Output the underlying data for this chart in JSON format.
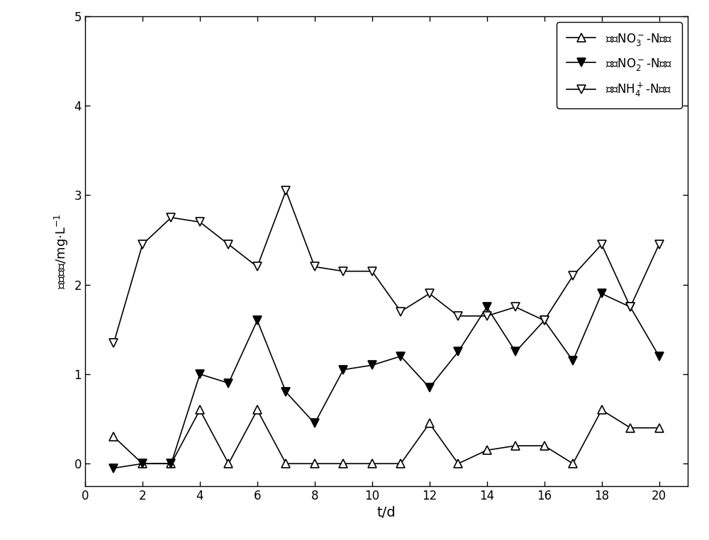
{
  "no3_x": [
    1,
    2,
    3,
    4,
    5,
    6,
    7,
    8,
    9,
    10,
    11,
    12,
    13,
    14,
    15,
    16,
    17,
    18,
    19,
    20
  ],
  "no3_y": [
    0.3,
    0.0,
    0.0,
    0.6,
    0.0,
    0.6,
    0.0,
    0.0,
    0.0,
    0.0,
    0.0,
    0.45,
    0.0,
    0.15,
    0.2,
    0.2,
    0.0,
    0.6,
    0.4,
    0.4
  ],
  "no2_x": [
    1,
    2,
    3,
    4,
    5,
    6,
    7,
    8,
    9,
    10,
    11,
    12,
    13,
    14,
    15,
    16,
    17,
    18,
    19,
    20
  ],
  "no2_y": [
    -0.05,
    0.0,
    0.0,
    1.0,
    0.9,
    1.6,
    0.8,
    0.45,
    1.05,
    1.1,
    1.2,
    0.85,
    1.25,
    1.75,
    1.25,
    1.6,
    1.15,
    1.9,
    1.75,
    1.2
  ],
  "nh4_x": [
    1,
    2,
    3,
    4,
    5,
    6,
    7,
    8,
    9,
    10,
    11,
    12,
    13,
    14,
    15,
    16,
    17,
    18,
    19,
    20
  ],
  "nh4_y": [
    1.35,
    2.45,
    2.75,
    2.7,
    2.45,
    2.2,
    3.05,
    2.2,
    2.15,
    2.15,
    1.7,
    1.9,
    1.65,
    1.65,
    1.75,
    1.6,
    2.1,
    2.45,
    1.75,
    2.45
  ],
  "xlabel": "t/d",
  "xlim": [
    0,
    21
  ],
  "ylim": [
    -0.25,
    5
  ],
  "xticks": [
    0,
    2,
    4,
    6,
    8,
    10,
    12,
    14,
    16,
    18,
    20
  ],
  "yticks": [
    0,
    1,
    2,
    3,
    4,
    5
  ],
  "color": "black",
  "linewidth": 1.2,
  "markersize": 8
}
